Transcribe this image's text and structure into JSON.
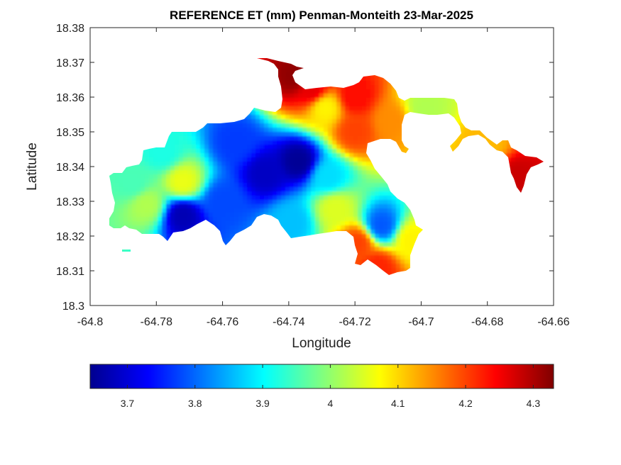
{
  "chart_data": {
    "type": "heatmap",
    "title": "REFERENCE ET (mm) Penman-Monteith 23-Mar-2025",
    "xlabel": "Longitude",
    "ylabel": "Latitude",
    "xlim": [
      -64.8,
      -64.66
    ],
    "ylim": [
      18.3,
      18.38
    ],
    "xticks": [
      -64.8,
      -64.78,
      -64.76,
      -64.74,
      -64.72,
      -64.7,
      -64.68,
      -64.66
    ],
    "xtick_labels": [
      "-64.8",
      "-64.78",
      "-64.76",
      "-64.74",
      "-64.72",
      "-64.7",
      "-64.68",
      "-64.66"
    ],
    "yticks": [
      18.3,
      18.31,
      18.32,
      18.33,
      18.34,
      18.35,
      18.36,
      18.37,
      18.38
    ],
    "ytick_labels": [
      "18.3",
      "18.31",
      "18.32",
      "18.33",
      "18.34",
      "18.35",
      "18.36",
      "18.37",
      "18.38"
    ],
    "colormap": "jet",
    "colorbar": {
      "position": "bottom",
      "range": [
        3.645,
        4.33
      ],
      "ticks": [
        3.7,
        3.8,
        3.9,
        4.0,
        4.1,
        4.2,
        4.3
      ],
      "tick_labels": [
        "3.7",
        "3.8",
        "3.9",
        "4",
        "4.1",
        "4.2",
        "4.3"
      ]
    },
    "grid": false,
    "hotspots": [
      {
        "lon": -64.737,
        "lat": 18.3415,
        "value": 3.66
      },
      {
        "lon": -64.747,
        "lat": 18.338,
        "value": 3.69
      },
      {
        "lon": -64.772,
        "lat": 18.326,
        "value": 3.68
      },
      {
        "lon": -64.756,
        "lat": 18.347,
        "value": 3.77
      },
      {
        "lon": -64.76,
        "lat": 18.33,
        "value": 3.78
      },
      {
        "lon": -64.739,
        "lat": 18.324,
        "value": 3.86
      },
      {
        "lon": -64.712,
        "lat": 18.323,
        "value": 3.79
      },
      {
        "lon": -64.728,
        "lat": 18.337,
        "value": 3.88
      },
      {
        "lon": -64.787,
        "lat": 18.335,
        "value": 3.95
      },
      {
        "lon": -64.772,
        "lat": 18.3355,
        "value": 4.06
      },
      {
        "lon": -64.783,
        "lat": 18.329,
        "value": 4.02
      },
      {
        "lon": -64.778,
        "lat": 18.344,
        "value": 3.92
      },
      {
        "lon": -64.733,
        "lat": 18.362,
        "value": 4.26
      },
      {
        "lon": -64.72,
        "lat": 18.36,
        "value": 4.24
      },
      {
        "lon": -64.72,
        "lat": 18.35,
        "value": 4.2
      },
      {
        "lon": -64.729,
        "lat": 18.357,
        "value": 4.08
      },
      {
        "lon": -64.738,
        "lat": 18.366,
        "value": 4.32
      },
      {
        "lon": -64.709,
        "lat": 18.353,
        "value": 4.15
      },
      {
        "lon": -64.719,
        "lat": 18.318,
        "value": 4.2
      },
      {
        "lon": -64.713,
        "lat": 18.311,
        "value": 4.22
      },
      {
        "lon": -64.726,
        "lat": 18.328,
        "value": 4.05
      },
      {
        "lon": -64.699,
        "lat": 18.357,
        "value": 4.02
      },
      {
        "lon": -64.671,
        "lat": 18.337,
        "value": 4.28
      },
      {
        "lon": -64.68,
        "lat": 18.346,
        "value": 4.12
      },
      {
        "lon": -64.703,
        "lat": 18.319,
        "value": 4.08
      }
    ]
  }
}
